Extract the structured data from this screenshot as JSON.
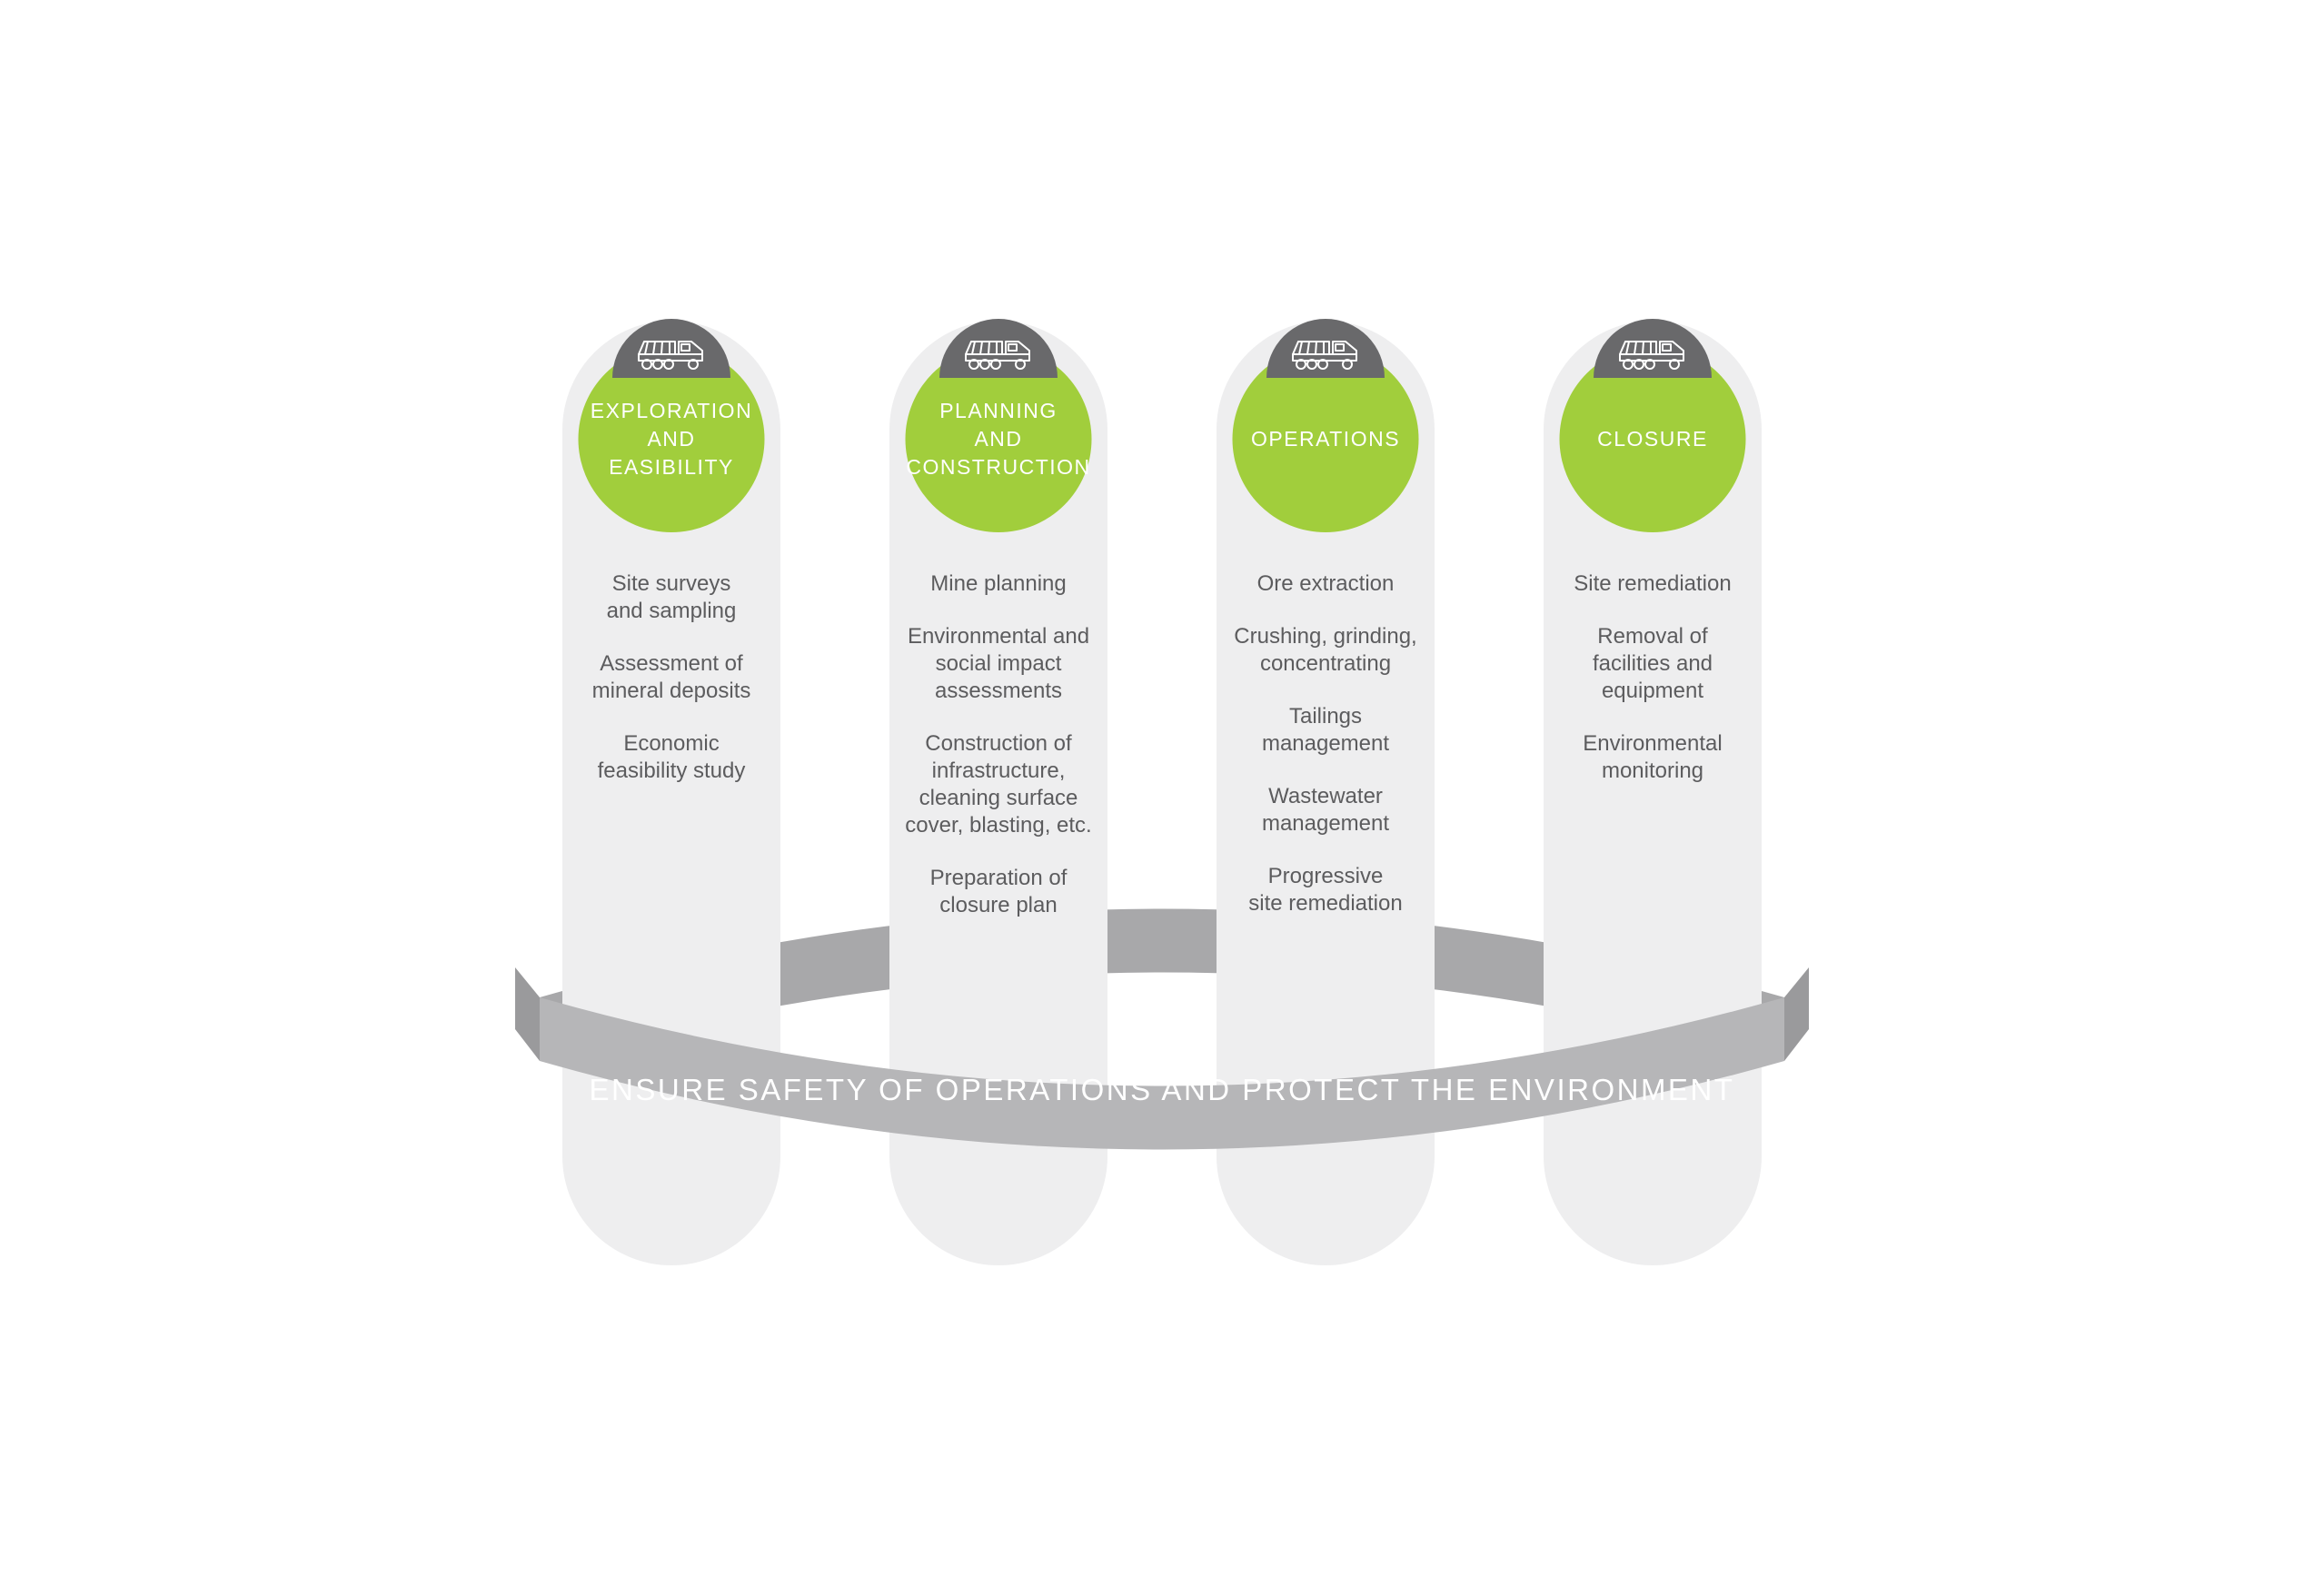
{
  "type": "infographic",
  "layout": "four-pillar-process",
  "colors": {
    "pillar_bg": "#eeeeef",
    "icon_cap_bg": "#69696b",
    "circle_bg": "#a1ce3c",
    "circle_text": "#ffffff",
    "item_text": "#5c5c5e",
    "ribbon_bg": "#b6b6b8",
    "ribbon_shadow": "#a0a0a2",
    "ribbon_text": "#ffffff",
    "background": "#ffffff"
  },
  "typography": {
    "circle_label_fontsize": 23,
    "circle_label_weight": 500,
    "circle_label_letterspacing": 1.5,
    "item_fontsize": 24,
    "ribbon_fontsize": 33,
    "ribbon_letterspacing": 2.5,
    "font_family": "condensed sans-serif"
  },
  "dimensions": {
    "container_width": 1480,
    "container_height": 1040,
    "pillar_width": 240,
    "pillar_height": 1040,
    "pillar_radius": 120,
    "circle_diameter": 205,
    "gap_between_pillars": 40
  },
  "pillars": [
    {
      "title": "EXPLORATION\nAND\nEASIBILITY",
      "items": [
        "Site surveys\nand sampling",
        "Assessment of\nmineral deposits",
        "Economic\nfeasibility study"
      ]
    },
    {
      "title": "PLANNING\nAND\nCONSTRUCTION",
      "items": [
        "Mine planning",
        "Environmental and\nsocial impact\nassessments",
        "Construction of\ninfrastructure,\ncleaning surface\ncover, blasting, etc.",
        "Preparation of\nclosure plan"
      ]
    },
    {
      "title": "OPERATIONS",
      "items": [
        "Ore extraction",
        "Crushing, grinding,\nconcentrating",
        "Tailings management",
        "Wastewater\nmanagement",
        "Progressive\nsite remediation"
      ]
    },
    {
      "title": "CLOSURE",
      "items": [
        "Site remediation",
        "Removal of\nfacilities and\nequipment",
        "Environmental\nmonitoring"
      ]
    }
  ],
  "ribbon_text": "ENSURE SAFETY OF OPERATIONS AND PROTECT THE ENVIRONMENT",
  "icon": {
    "name": "dump-truck-icon",
    "stroke": "#ffffff",
    "stroke_width": 2
  }
}
